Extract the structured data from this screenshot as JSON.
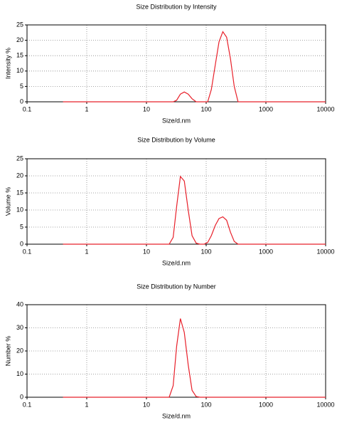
{
  "chart_data": [
    {
      "type": "line",
      "title": "Size Distribution by Intensity",
      "x_label": "Size/d.nm",
      "y_label": "Intensity %",
      "log_x": true,
      "grid": true,
      "color": "#e8202a",
      "xlim": [
        0.1,
        10000
      ],
      "xticks": [
        0.1,
        1,
        10,
        100,
        1000,
        10000
      ],
      "ylim": [
        0,
        25
      ],
      "yticks": [
        0,
        5,
        10,
        15,
        20,
        25
      ],
      "x": [
        0.4,
        28,
        32,
        37,
        43,
        50,
        58,
        68,
        90,
        106,
        122,
        142,
        164,
        190,
        220,
        255,
        295,
        342,
        400,
        10000
      ],
      "values": [
        0,
        0,
        0.5,
        2.5,
        3.2,
        2.5,
        1,
        0,
        0,
        0,
        4,
        12,
        19.5,
        22.8,
        21,
        14,
        5,
        0,
        0,
        0
      ]
    },
    {
      "type": "line",
      "title": "Size Distribution by Volume",
      "x_label": "Size/d.nm",
      "y_label": "Volume %",
      "log_x": true,
      "grid": true,
      "color": "#e8202a",
      "xlim": [
        0.1,
        10000
      ],
      "xticks": [
        0.1,
        1,
        10,
        100,
        1000,
        10000
      ],
      "ylim": [
        0,
        25
      ],
      "yticks": [
        0,
        5,
        10,
        15,
        20,
        25
      ],
      "x": [
        0.4,
        24,
        28,
        32,
        37,
        43,
        50,
        58,
        68,
        79,
        92,
        106,
        122,
        142,
        164,
        190,
        220,
        255,
        295,
        342,
        400,
        10000
      ],
      "values": [
        0,
        0,
        2,
        11,
        19.8,
        18.5,
        10,
        2.5,
        0.3,
        0,
        0,
        0.5,
        2.5,
        5.5,
        7.5,
        8,
        7,
        3.5,
        0.8,
        0,
        0,
        0
      ]
    },
    {
      "type": "line",
      "title": "Size Distribution by Number",
      "x_label": "Size/d.nm",
      "y_label": "Number %",
      "log_x": true,
      "grid": true,
      "color": "#e8202a",
      "xlim": [
        0.1,
        10000
      ],
      "xticks": [
        0.1,
        1,
        10,
        100,
        1000,
        10000
      ],
      "ylim": [
        0,
        40
      ],
      "yticks": [
        0,
        10,
        20,
        30,
        40
      ],
      "x": [
        0.4,
        24,
        28,
        32,
        37,
        43,
        50,
        58,
        68,
        79,
        10000
      ],
      "values": [
        0,
        0,
        5,
        22,
        34,
        28,
        14,
        3,
        0.3,
        0,
        0
      ]
    }
  ]
}
